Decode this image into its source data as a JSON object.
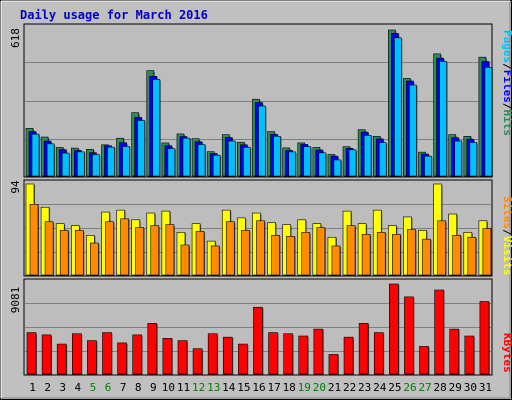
{
  "chart_data": {
    "type": "bar",
    "title": "Daily usage for March 2016",
    "colors": {
      "background": "#c0c0c0",
      "panel": "#bdbdbd",
      "title": "#0000c8",
      "hits": "#2e8b57",
      "files": "#0000ff",
      "pages": "#00bfff",
      "visits": "#ffff00",
      "sites": "#ff8c00",
      "kbytes": "#ff0000",
      "weekend_label": "#008000",
      "weekday_label": "#000000"
    },
    "days": [
      "1",
      "2",
      "3",
      "4",
      "5",
      "6",
      "7",
      "8",
      "9",
      "10",
      "11",
      "12",
      "13",
      "14",
      "15",
      "16",
      "17",
      "18",
      "19",
      "20",
      "21",
      "22",
      "23",
      "24",
      "25",
      "26",
      "27",
      "28",
      "29",
      "30",
      "31"
    ],
    "weekend_days": [
      "5",
      "6",
      "12",
      "13",
      "19",
      "20",
      "26",
      "27"
    ],
    "top_panel": {
      "max_label": "618",
      "ymax": 618,
      "legend": [
        "Pages",
        "Files",
        "Hits"
      ],
      "series": [
        {
          "name": "Hits",
          "values": [
            202,
            165,
            121,
            118,
            113,
            132,
            160,
            268,
            446,
            140,
            178,
            158,
            103,
            175,
            143,
            325,
            188,
            119,
            140,
            121,
            91,
            124,
            196,
            168,
            618,
            413,
            101,
            517,
            175,
            168,
            503
          ]
        },
        {
          "name": "Files",
          "values": [
            188,
            148,
            112,
            108,
            99,
            128,
            141,
            248,
            422,
            128,
            167,
            145,
            95,
            163,
            132,
            311,
            176,
            108,
            134,
            110,
            84,
            117,
            186,
            157,
            604,
            402,
            93,
            499,
            162,
            156,
            485
          ]
        },
        {
          "name": "Pages",
          "values": [
            177,
            136,
            97,
            102,
            91,
            122,
            125,
            235,
            409,
            116,
            160,
            133,
            88,
            148,
            121,
            296,
            168,
            102,
            124,
            98,
            68,
            111,
            172,
            141,
            585,
            385,
            84,
            485,
            148,
            142,
            460
          ]
        }
      ]
    },
    "middle_panel": {
      "max_label": "94",
      "ymax": 94,
      "legend": [
        "Sites",
        "Visits"
      ],
      "series": [
        {
          "name": "Visits",
          "values": [
            94,
            70,
            53,
            51,
            41,
            65,
            67,
            57,
            64,
            66,
            44,
            53,
            35,
            67,
            59,
            64,
            54,
            52,
            57,
            53,
            39,
            66,
            53,
            67,
            51,
            60,
            46,
            94,
            63,
            44,
            56
          ]
        },
        {
          "name": "Sites",
          "values": [
            73,
            55,
            46,
            46,
            33,
            55,
            58,
            49,
            51,
            52,
            31,
            45,
            30,
            55,
            46,
            56,
            41,
            40,
            44,
            49,
            30,
            51,
            42,
            44,
            42,
            47,
            37,
            56,
            41,
            39,
            48
          ]
        }
      ]
    },
    "bottom_panel": {
      "max_label": "9081",
      "ymax": 9081,
      "legend": [
        "KBytes"
      ],
      "series": [
        {
          "name": "KBytes",
          "values": [
            4180,
            3948,
            3021,
            4064,
            3369,
            4180,
            3137,
            3948,
            5110,
            3601,
            3369,
            2554,
            4064,
            3717,
            3021,
            6735,
            4180,
            4064,
            3833,
            4529,
            1974,
            3717,
            5110,
            4180,
            9081,
            7781,
            2786,
            8474,
            4529,
            3833,
            7315
          ]
        }
      ]
    }
  }
}
